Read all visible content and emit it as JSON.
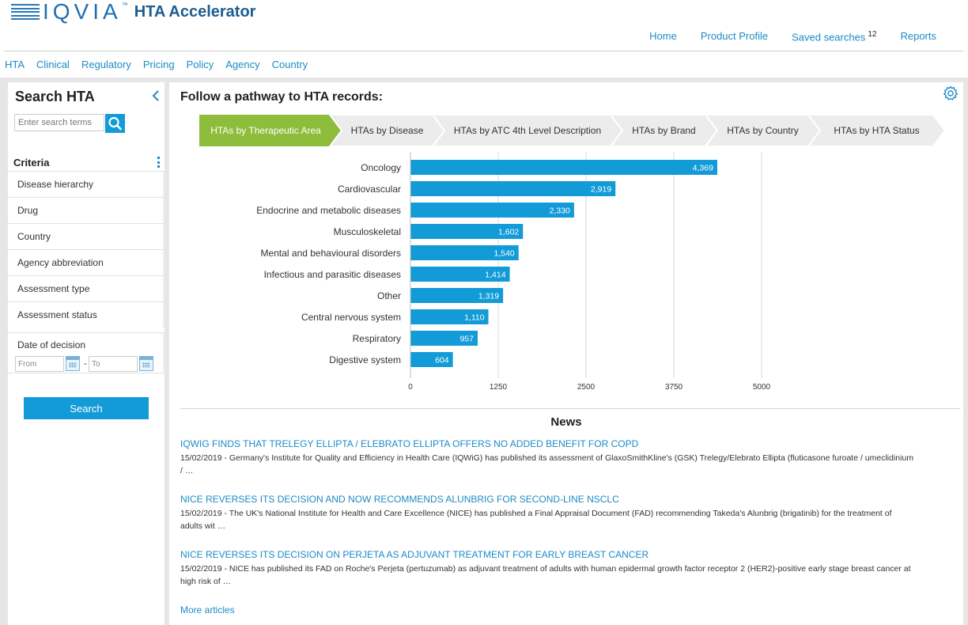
{
  "brand": {
    "logo_text": "IQVIA",
    "tm": "™",
    "product": "HTA Accelerator"
  },
  "top_nav": [
    {
      "label": "Home"
    },
    {
      "label": "Product Profile"
    },
    {
      "label": "Saved searches",
      "badge": "12"
    },
    {
      "label": "Reports"
    }
  ],
  "sub_nav": [
    "HTA",
    "Clinical",
    "Regulatory",
    "Pricing",
    "Policy",
    "Agency",
    "Country"
  ],
  "sidebar": {
    "title": "Search HTA",
    "search_placeholder": "Enter search terms",
    "criteria_label": "Criteria",
    "criteria": [
      "Disease hierarchy",
      "Drug",
      "Country",
      "Agency abbreviation",
      "Assessment type",
      "Assessment status"
    ],
    "date_label": "Date of decision",
    "from_placeholder": "From",
    "to_placeholder": "To",
    "date_separator": "-",
    "search_button": "Search"
  },
  "main": {
    "title": "Follow a pathway to HTA records:",
    "pathway": [
      "HTAs by Therapeutic Area",
      "HTAs by Disease",
      "HTAs by ATC 4th Level Description",
      "HTAs by Brand",
      "HTAs by Country",
      "HTAs by HTA Status"
    ],
    "active_step": 0
  },
  "chart_data": {
    "type": "bar",
    "orientation": "horizontal",
    "categories": [
      "Oncology",
      "Cardiovascular",
      "Endocrine and metabolic diseases",
      "Musculoskeletal",
      "Mental and behavioural disorders",
      "Infectious and parasitic diseases",
      "Other",
      "Central nervous system",
      "Respiratory",
      "Digestive system"
    ],
    "values": [
      4369,
      2919,
      2330,
      1602,
      1540,
      1414,
      1319,
      1110,
      957,
      604
    ],
    "value_labels": [
      "4,369",
      "2,919",
      "2,330",
      "1,602",
      "1,540",
      "1,414",
      "1,319",
      "1,110",
      "957",
      "604"
    ],
    "xlim": [
      0,
      5000
    ],
    "ticks": [
      0,
      1250,
      2500,
      3750,
      5000
    ],
    "tick_labels": [
      "0",
      "1250",
      "2500",
      "3750",
      "5000"
    ],
    "grid": true,
    "bar_color": "#129bd7",
    "title": "",
    "xlabel": "",
    "ylabel": ""
  },
  "news": {
    "title": "News",
    "articles": [
      {
        "headline": "IQWIG FINDS THAT TRELEGY ELLIPTA / ELEBRATO ELLIPTA OFFERS NO ADDED BENEFIT FOR COPD",
        "body": "15/02/2019 - Germany's Institute for Quality and Efficiency in Health Care (IQWiG) has published its assessment of GlaxoSmithKline's (GSK) Trelegy/Elebrato Ellipta (fluticasone furoate / umeclidinium / …"
      },
      {
        "headline": "NICE REVERSES ITS DECISION AND NOW RECOMMENDS ALUNBRIG FOR SECOND-LINE NSCLC",
        "body": "15/02/2019 - The UK's National Institute for Health and Care Excellence (NICE) has published a Final Appraisal Document (FAD) recommending Takeda's Alunbrig (brigatinib) for the treatment of adults wit …"
      },
      {
        "headline": "NICE REVERSES ITS DECISION ON PERJETA AS ADJUVANT TREATMENT FOR EARLY BREAST CANCER",
        "body": "15/02/2019 - NICE has published its FAD on Roche's Perjeta (pertuzumab) as adjuvant treatment of adults with human epidermal growth factor receptor 2 (HER2)-positive early stage breast cancer at high risk of …"
      }
    ],
    "more_label": "More articles"
  },
  "colors": {
    "accent": "#129bd7",
    "link": "#1d8bc6",
    "active_step": "#8dbd3a",
    "step_bg": "#ececec"
  },
  "icons": {
    "search": "search-icon",
    "collapse": "chevron-left-icon",
    "settings": "gear-icon",
    "calendar": "calendar-icon",
    "more": "kebab-menu-icon"
  }
}
